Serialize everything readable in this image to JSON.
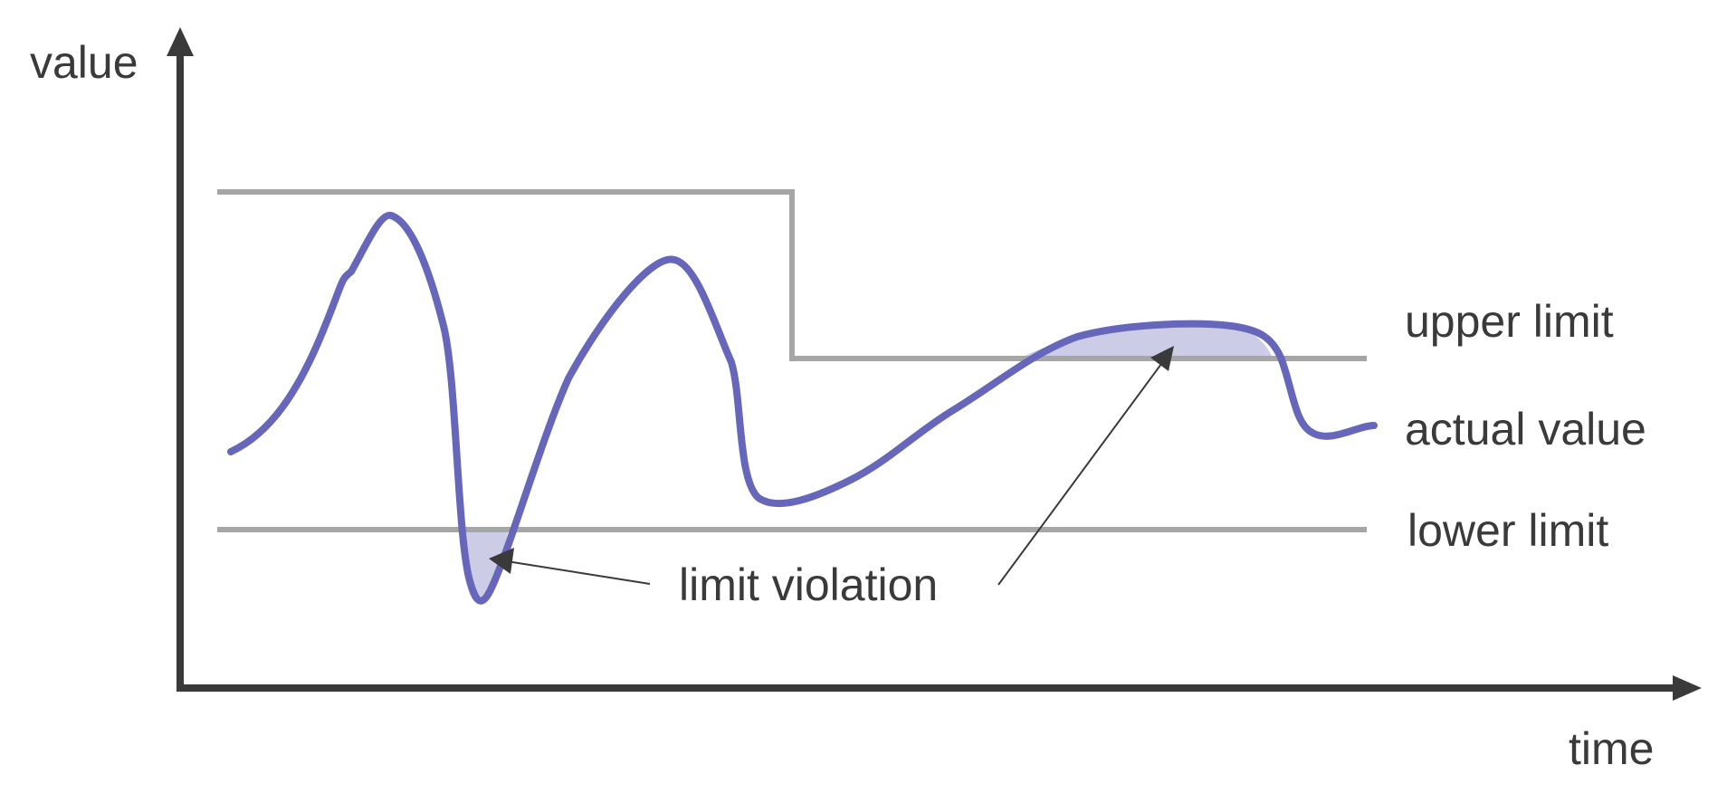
{
  "diagram": {
    "y_axis_label": "value",
    "x_axis_label": "time",
    "legend": {
      "upper_limit": "upper limit",
      "actual_value": "actual value",
      "lower_limit": "lower limit"
    },
    "annotation": "limit violation"
  },
  "colors": {
    "axis": "#3a3a3a",
    "limit_line": "#a6a6a6",
    "actual_value_line": "#6666bb",
    "violation_fill": "#cccce6",
    "annotation_line": "#3a3a3a",
    "text": "#3a3a3a"
  }
}
